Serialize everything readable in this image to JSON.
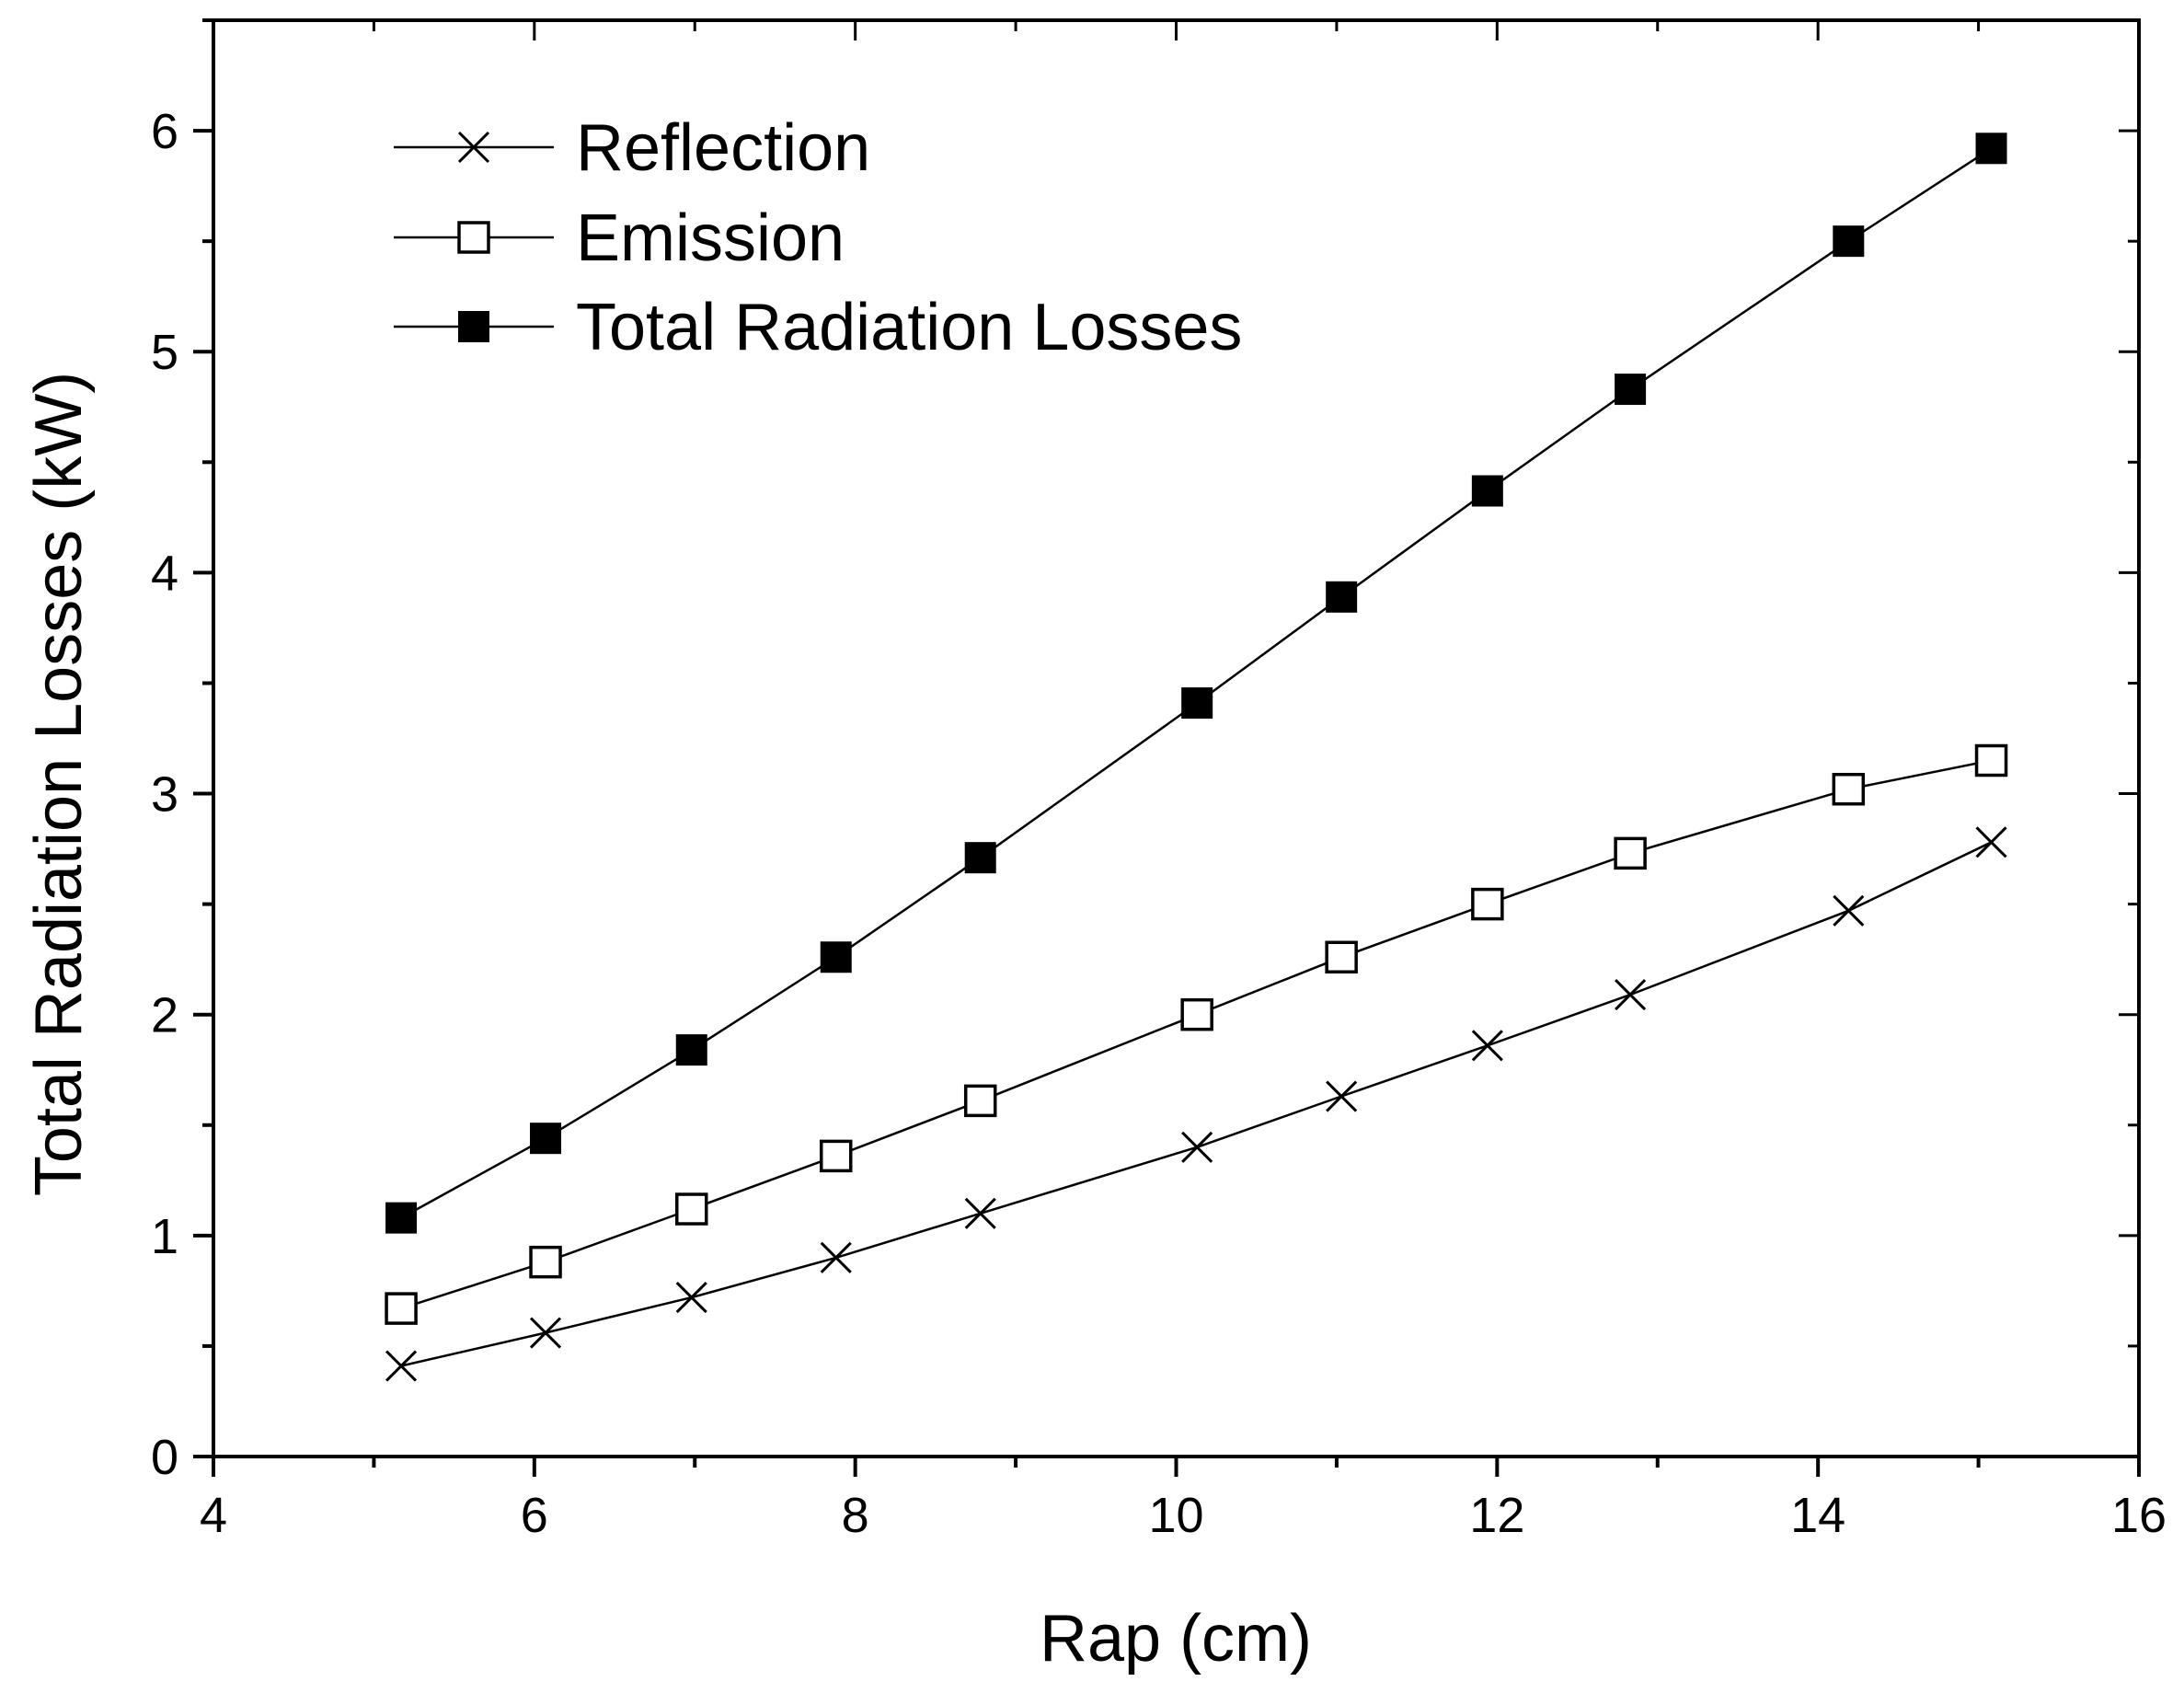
{
  "chart_data": {
    "type": "line",
    "title": "",
    "xlabel": "Rap (cm)",
    "ylabel": "Total Radiation Losses (kW)",
    "xlim": [
      4,
      16
    ],
    "ylim": [
      0,
      6.5
    ],
    "x_ticks": [
      "4",
      "6",
      "8",
      "10",
      "12",
      "14",
      "16"
    ],
    "y_ticks": [
      "0",
      "1",
      "2",
      "3",
      "4",
      "5",
      "6"
    ],
    "legend_position": "top-left",
    "grid": false,
    "x": [
      5.17,
      6.07,
      6.98,
      7.88,
      8.78,
      10.13,
      11.03,
      11.94,
      12.83,
      14.19,
      15.08
    ],
    "series": [
      {
        "name": "Reflection",
        "marker": "x",
        "values": [
          0.41,
          0.56,
          0.72,
          0.9,
          1.1,
          1.4,
          1.63,
          1.86,
          2.09,
          2.47,
          2.78
        ]
      },
      {
        "name": "Emission",
        "marker": "open-square",
        "values": [
          0.67,
          0.88,
          1.12,
          1.36,
          1.61,
          2.0,
          2.26,
          2.5,
          2.73,
          3.02,
          3.15
        ]
      },
      {
        "name": "Total Radiation Losses",
        "marker": "filled-square",
        "values": [
          1.08,
          1.44,
          1.84,
          2.26,
          2.71,
          3.41,
          3.89,
          4.37,
          4.83,
          5.5,
          5.92
        ]
      }
    ]
  },
  "colors": {
    "line": "#000000",
    "background": "#ffffff"
  }
}
